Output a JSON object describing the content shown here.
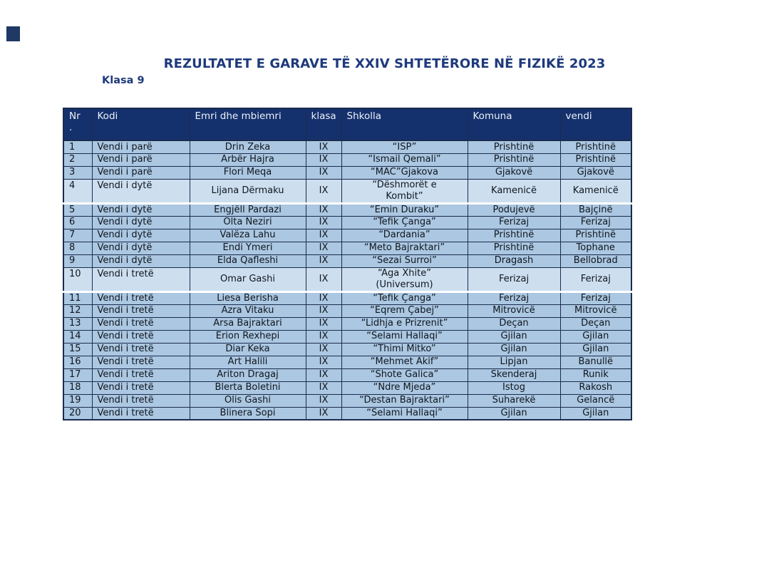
{
  "page": {
    "title": "REZULTATET E GARAVE TË XXIV SHTETËRORE NË FIZIKË 2023",
    "subtitle": "Klasa 9"
  },
  "colors": {
    "title_text": "#1e3a7c",
    "header_bg": "#15316d",
    "header_text": "#edf1f8",
    "row_bg": "#abc7e1",
    "row_highlight_bg": "#cddfef",
    "border": "#1b2b4d",
    "body_text": "#10161f",
    "corner_mark": "#1f3864"
  },
  "table": {
    "columns": [
      {
        "key": "nr",
        "label": "Nr\n."
      },
      {
        "key": "kodi",
        "label": "Kodi"
      },
      {
        "key": "emri",
        "label": "Emri dhe mbiemri"
      },
      {
        "key": "klasa",
        "label": "klasa"
      },
      {
        "key": "shkolla",
        "label": "Shkolla"
      },
      {
        "key": "komuna",
        "label": "Komuna"
      },
      {
        "key": "vendi",
        "label": "vendi"
      }
    ],
    "rows": [
      {
        "nr": "1",
        "kodi": "Vendi i parë",
        "emri": "Drin Zeka",
        "klasa": "IX",
        "shkolla": "“ISP”",
        "komuna": "Prishtinë",
        "vendi": "Prishtinë",
        "tall": false
      },
      {
        "nr": "2",
        "kodi": "Vendi i parë",
        "emri": "Arbër Hajra",
        "klasa": "IX",
        "shkolla": "“Ismail Qemali”",
        "komuna": "Prishtinë",
        "vendi": "Prishtinë",
        "tall": false
      },
      {
        "nr": "3",
        "kodi": "Vendi i parë",
        "emri": "Flori Meqa",
        "klasa": "IX",
        "shkolla": "“MAC”Gjakova",
        "komuna": "Gjakovë",
        "vendi": "Gjakovë",
        "tall": false
      },
      {
        "nr": "4",
        "kodi": "Vendi i dytë",
        "emri": "Lijana Dërmaku",
        "klasa": "IX",
        "shkolla": "“Dëshmorët e\nKombit”",
        "komuna": "Kamenicë",
        "vendi": "Kamenicë",
        "tall": true
      },
      {
        "nr": "5",
        "kodi": "Vendi i dytë",
        "emri": "Engjëll Pardazi",
        "klasa": "IX",
        "shkolla": "“Emin Duraku”",
        "komuna": "Podujevë",
        "vendi": "Bajçinë",
        "tall": false
      },
      {
        "nr": "6",
        "kodi": "Vendi i dytë",
        "emri": "Olta Neziri",
        "klasa": "IX",
        "shkolla": "“Tefik Çanga”",
        "komuna": "Ferizaj",
        "vendi": "Ferizaj",
        "tall": false
      },
      {
        "nr": "7",
        "kodi": "Vendi i dytë",
        "emri": "Valëza Lahu",
        "klasa": "IX",
        "shkolla": "“Dardania”",
        "komuna": "Prishtinë",
        "vendi": "Prishtinë",
        "tall": false
      },
      {
        "nr": "8",
        "kodi": "Vendi i dytë",
        "emri": "Endi Ymeri",
        "klasa": "IX",
        "shkolla": "“Meto Bajraktari”",
        "komuna": "Prishtinë",
        "vendi": "Tophane",
        "tall": false
      },
      {
        "nr": "9",
        "kodi": "Vendi i dytë",
        "emri": "Elda Qafleshi",
        "klasa": "IX",
        "shkolla": "“Sezai Surroi”",
        "komuna": "Dragash",
        "vendi": "Bellobrad",
        "tall": false
      },
      {
        "nr": "10",
        "kodi": "Vendi i tretë",
        "emri": "Omar Gashi",
        "klasa": "IX",
        "shkolla": "“Aga Xhite”\n(Universum)",
        "komuna": "Ferizaj",
        "vendi": "Ferizaj",
        "tall": true
      },
      {
        "nr": "11",
        "kodi": "Vendi i tretë",
        "emri": "Liesa Berisha",
        "klasa": "IX",
        "shkolla": "“Tefik Çanga”",
        "komuna": "Ferizaj",
        "vendi": "Ferizaj",
        "tall": false
      },
      {
        "nr": "12",
        "kodi": "Vendi i tretë",
        "emri": "Azra Vitaku",
        "klasa": "IX",
        "shkolla": "“Eqrem Çabej”",
        "komuna": "Mitrovicë",
        "vendi": "Mitrovicë",
        "tall": false
      },
      {
        "nr": "13",
        "kodi": "Vendi i tretë",
        "emri": "Arsa Bajraktari",
        "klasa": "IX",
        "shkolla": "“Lidhja e Prizrenit”",
        "komuna": "Deçan",
        "vendi": "Deçan",
        "tall": false
      },
      {
        "nr": "14",
        "kodi": "Vendi i tretë",
        "emri": "Erion Rexhepi",
        "klasa": "IX",
        "shkolla": "“Selami Hallaqi”",
        "komuna": "Gjilan",
        "vendi": "Gjilan",
        "tall": false
      },
      {
        "nr": "15",
        "kodi": "Vendi i tretë",
        "emri": "Diar Keka",
        "klasa": "IX",
        "shkolla": "“Thimi Mitko”",
        "komuna": "Gjilan",
        "vendi": "Gjilan",
        "tall": false
      },
      {
        "nr": "16",
        "kodi": "Vendi i tretë",
        "emri": "Art Halili",
        "klasa": "IX",
        "shkolla": "“Mehmet Akif”",
        "komuna": "Lipjan",
        "vendi": "Banullë",
        "tall": false
      },
      {
        "nr": "17",
        "kodi": "Vendi i tretë",
        "emri": "Ariton Dragaj",
        "klasa": "IX",
        "shkolla": "“Shote Galica”",
        "komuna": "Skenderaj",
        "vendi": "Runik",
        "tall": false
      },
      {
        "nr": "18",
        "kodi": "Vendi i tretë",
        "emri": "Blerta Boletini",
        "klasa": "IX",
        "shkolla": "“Ndre Mjeda”",
        "komuna": "Istog",
        "vendi": "Rakosh",
        "tall": false
      },
      {
        "nr": "19",
        "kodi": "Vendi i tretë",
        "emri": "Olis Gashi",
        "klasa": "IX",
        "shkolla": "“Destan Bajraktari”",
        "komuna": "Suharekë",
        "vendi": "Gelancë",
        "tall": false
      },
      {
        "nr": "20",
        "kodi": "Vendi i tretë",
        "emri": "Blinera Sopi",
        "klasa": "IX",
        "shkolla": "“Selami Hallaqi”",
        "komuna": "Gjilan",
        "vendi": "Gjilan",
        "tall": false
      }
    ]
  }
}
